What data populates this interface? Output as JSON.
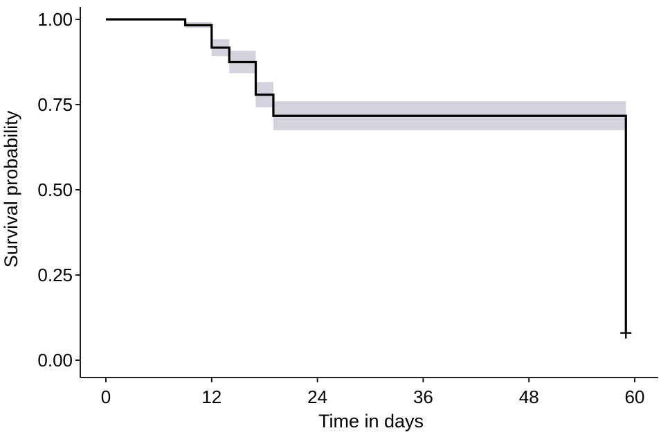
{
  "chart_data": {
    "type": "line",
    "subtype": "kaplan-meier step curve with confidence band",
    "title": "",
    "xlabel": "Time in days",
    "ylabel": "Survival probability",
    "xlim": [
      0,
      60
    ],
    "ylim": [
      0,
      1
    ],
    "x_ticks": [
      0,
      12,
      24,
      36,
      48,
      60
    ],
    "x_tick_labels": [
      "0",
      "12",
      "24",
      "36",
      "48",
      "60"
    ],
    "y_ticks": [
      0,
      0.25,
      0.5,
      0.75,
      1.0
    ],
    "y_tick_labels": [
      "0.00",
      "0.25",
      "0.50",
      "0.75",
      "1.00"
    ],
    "grid": false,
    "legend": "none",
    "colors": {
      "line": "#000000",
      "band": "#d2d3dc",
      "axis": "#000000"
    },
    "series": [
      {
        "steps": [
          {
            "x": 0,
            "y": 1.0
          },
          {
            "x": 9,
            "y": 0.983
          },
          {
            "x": 12,
            "y": 0.917
          },
          {
            "x": 14,
            "y": 0.875
          },
          {
            "x": 17,
            "y": 0.779
          },
          {
            "x": 19,
            "y": 0.717
          },
          {
            "x": 59,
            "y": 0.08
          }
        ],
        "end_x": 59,
        "confidence_band": [
          {
            "x": 9,
            "lower": 0.975,
            "upper": 0.992
          },
          {
            "x": 12,
            "lower": 0.892,
            "upper": 0.942
          },
          {
            "x": 14,
            "lower": 0.842,
            "upper": 0.908
          },
          {
            "x": 17,
            "lower": 0.742,
            "upper": 0.816
          },
          {
            "x": 19,
            "lower": 0.675,
            "upper": 0.76
          }
        ],
        "censor_marks": [
          {
            "x": 59,
            "y": 0.08
          }
        ]
      }
    ]
  }
}
